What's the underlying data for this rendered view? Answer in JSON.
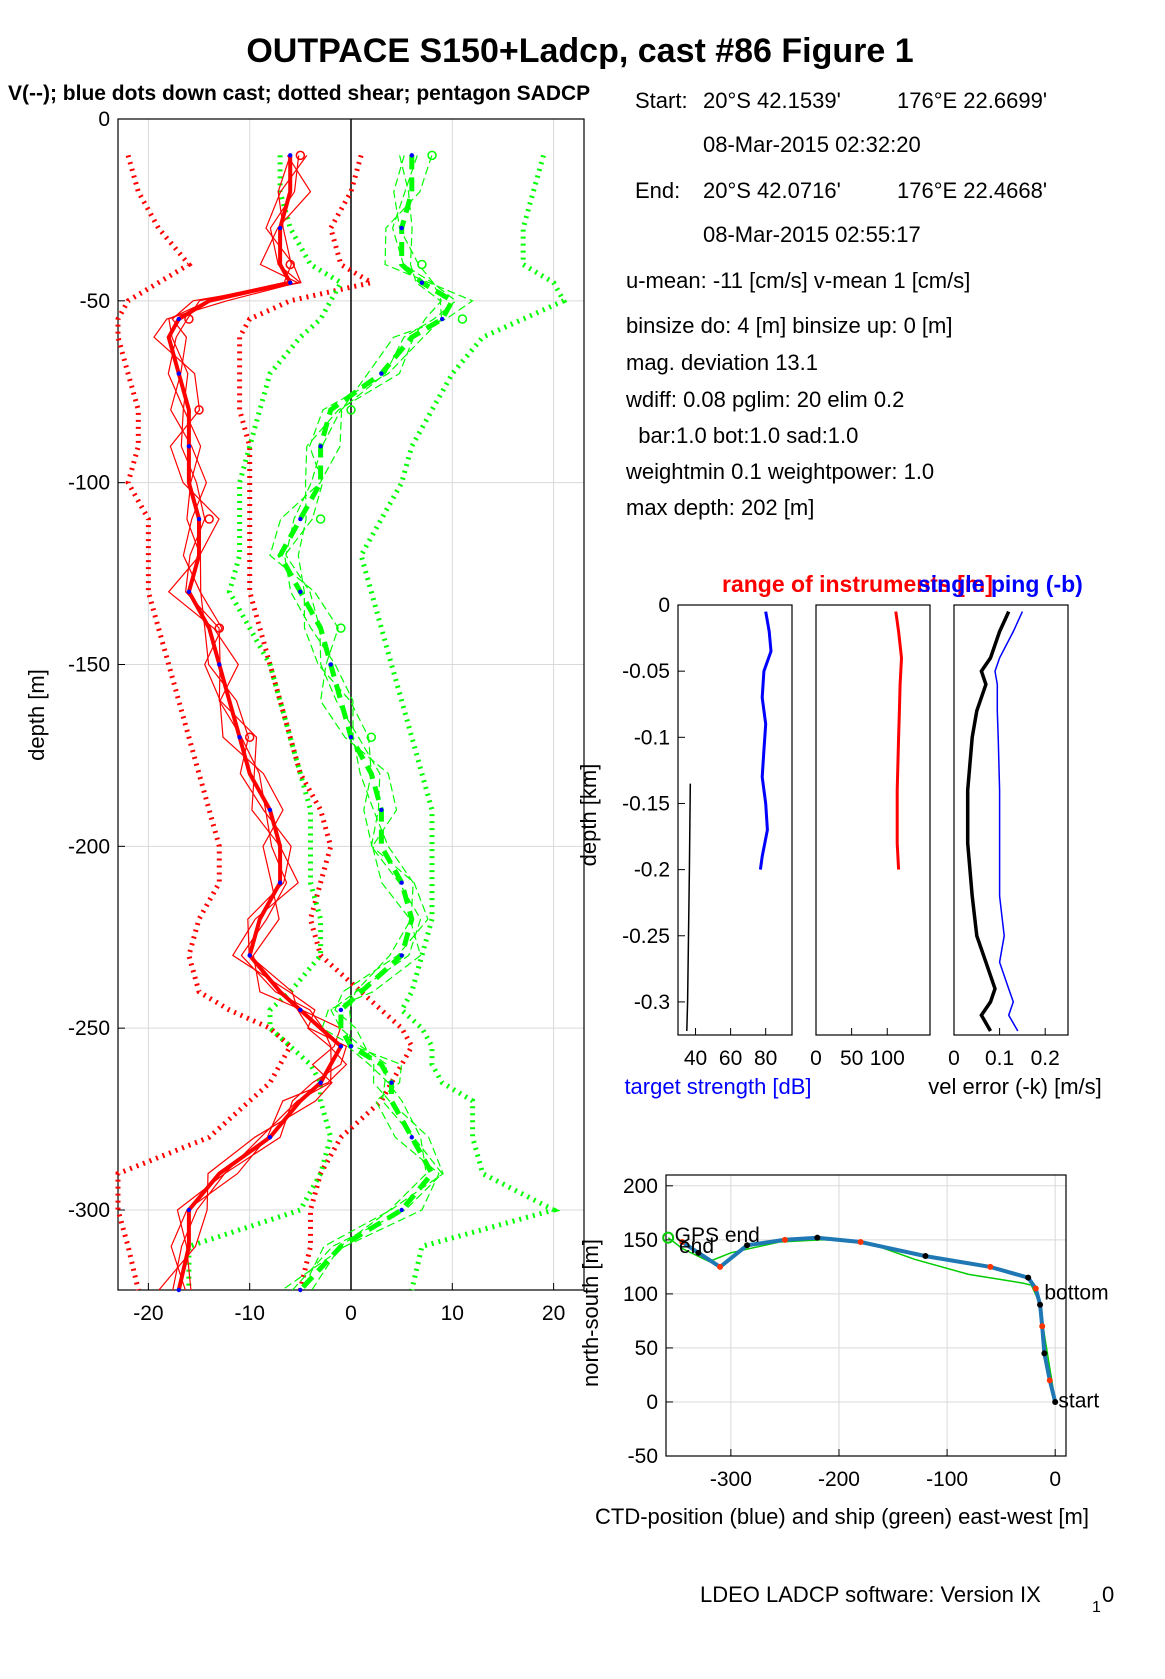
{
  "figure": {
    "title": "OUTPACE S150+Ladcp, cast #86  Figure 1",
    "subtitle": "V(--); blue dots down cast; dotted shear; pentagon SADCP",
    "footer": {
      "text": "LDEO LADCP software: Version IX",
      "sub": "1",
      "suffix": "0"
    }
  },
  "info": {
    "start_label": "Start:",
    "start_lat": "20°S 42.1539'",
    "start_lon": "176°E 22.6699'",
    "start_time": "08-Mar-2015 02:32:20",
    "end_label": "End:",
    "end_lat": "20°S 42.0716'",
    "end_lon": "176°E 22.4668'",
    "end_time": "08-Mar-2015 02:55:17",
    "lines": [
      "u-mean: -11 [cm/s]    v-mean   1 [cm/s]",
      "binsize do: 4 [m]  binsize up:  0 [m]",
      "mag. deviation 13.1",
      "wdiff: 0.08  pglim: 20  elim 0.2",
      "  bar:1.0 bot:1.0 sad:1.0",
      "weightmin 0.1  weightpower: 1.0",
      "max depth: 202 [m]"
    ]
  },
  "chart_data": [
    {
      "id": "velocity_profile",
      "type": "line",
      "ylabel": "depth [m]",
      "xlabel": "",
      "xlim": [
        -23,
        23
      ],
      "ylim": [
        -322,
        0
      ],
      "xticks": [
        -20,
        -10,
        0,
        10,
        20
      ],
      "yticks": [
        0,
        -50,
        -100,
        -150,
        -200,
        -250,
        -300
      ],
      "grid": true,
      "colors": {
        "u": "#ff0000",
        "v": "#00ff00",
        "dots": "#0000ff",
        "zero": "#000000"
      },
      "depth": [
        -10,
        -20,
        -30,
        -40,
        -45,
        -50,
        -55,
        -60,
        -70,
        -80,
        -90,
        -100,
        -110,
        -120,
        -130,
        -140,
        -150,
        -160,
        -170,
        -180,
        -190,
        -200,
        -210,
        -220,
        -230,
        -240,
        -245,
        -250,
        -255,
        -260,
        -265,
        -270,
        -280,
        -290,
        -300,
        -310,
        -322
      ],
      "series": [
        {
          "name": "u",
          "values": [
            -6,
            -6,
            -7,
            -7,
            -6,
            -14,
            -17,
            -18,
            -17,
            -16,
            -16,
            -16,
            -15,
            -15,
            -16,
            -14,
            -13,
            -12,
            -11,
            -10,
            -8,
            -7,
            -7,
            -9,
            -10,
            -7,
            -5,
            -3,
            -1,
            -2,
            -3,
            -5,
            -8,
            -13,
            -16,
            -16,
            -17
          ]
        },
        {
          "name": "v",
          "values": [
            6,
            6,
            5,
            5,
            7,
            10,
            9,
            6,
            3,
            -2,
            -3,
            -3,
            -5,
            -7,
            -5,
            -3,
            -2,
            -1,
            0,
            2,
            3,
            3,
            5,
            6,
            5,
            1,
            -1,
            -1,
            0,
            3,
            4,
            4,
            6,
            8,
            5,
            -1,
            -5
          ]
        },
        {
          "name": "u-shear-left",
          "values": [
            -22,
            -21,
            -19,
            -16,
            -19,
            -22,
            -23,
            -23,
            -22,
            -21,
            -21,
            -22,
            -20,
            -20,
            -20,
            -19,
            -18,
            -17,
            -16,
            -15,
            -14,
            -13,
            -13,
            -15,
            -16,
            -15,
            -12,
            -8,
            -6,
            -7,
            -8,
            -10,
            -14,
            -23,
            -23,
            -22,
            -21
          ]
        },
        {
          "name": "u-shear-right",
          "values": [
            1,
            0,
            -2,
            -1,
            2,
            -6,
            -10,
            -11,
            -11,
            -11,
            -10,
            -10,
            -10,
            -10,
            -10,
            -9,
            -8,
            -7,
            -6,
            -5,
            -3,
            -2,
            -3,
            -4,
            -3,
            1,
            3,
            5,
            6,
            5,
            4,
            3,
            -1,
            -3,
            -4,
            -4,
            -5
          ]
        },
        {
          "name": "v-shear-left",
          "values": [
            -7,
            -7,
            -6,
            -4,
            -1,
            -2,
            -3,
            -5,
            -8,
            -9,
            -10,
            -11,
            -11,
            -11,
            -12,
            -10,
            -8,
            -7,
            -6,
            -5,
            -4,
            -4,
            -4,
            -3,
            -3,
            -6,
            -8,
            -8,
            -6,
            -4,
            -3,
            -3,
            -2,
            -3,
            -5,
            -16,
            -16
          ]
        },
        {
          "name": "v-shear-right",
          "values": [
            19,
            18,
            17,
            17,
            20,
            21,
            17,
            13,
            10,
            8,
            6,
            5,
            3,
            1,
            2,
            3,
            4,
            5,
            6,
            7,
            8,
            8,
            8,
            8,
            7,
            6,
            5,
            7,
            8,
            8,
            9,
            12,
            12,
            13,
            20,
            7,
            6
          ]
        }
      ]
    },
    {
      "id": "target_strength",
      "type": "line",
      "title": "range of instruments [m]",
      "xlabel": "target strength [dB]",
      "ylabel": "depth [km]",
      "xlim": [
        30,
        95
      ],
      "ylim": [
        -0.325,
        0
      ],
      "xticks": [
        40,
        60,
        80
      ],
      "yticks": [
        0,
        -0.05,
        -0.1,
        -0.15,
        -0.2,
        -0.25,
        -0.3
      ],
      "depth": [
        -0.005,
        -0.02,
        -0.035,
        -0.05,
        -0.07,
        -0.09,
        -0.11,
        -0.13,
        -0.15,
        -0.17,
        -0.19,
        -0.2
      ],
      "series": [
        {
          "name": "blue",
          "values": [
            80,
            82,
            83,
            79,
            78,
            80,
            79,
            78,
            80,
            81,
            78,
            77
          ]
        }
      ],
      "black_line": {
        "depth": [
          -0.135,
          -0.2,
          -0.25,
          -0.3,
          -0.322
        ],
        "values": [
          37,
          36.5,
          36,
          35.5,
          35
        ]
      }
    },
    {
      "id": "range",
      "type": "line",
      "xlim": [
        0,
        160
      ],
      "ylim": [
        -0.325,
        0
      ],
      "xticks": [
        0,
        50,
        100
      ],
      "depth": [
        -0.005,
        -0.02,
        -0.04,
        -0.06,
        -0.08,
        -0.1,
        -0.12,
        -0.14,
        -0.16,
        -0.18,
        -0.2
      ],
      "series": [
        {
          "name": "range",
          "values": [
            112,
            116,
            120,
            118,
            117,
            116,
            115,
            114,
            114,
            114,
            116
          ]
        }
      ]
    },
    {
      "id": "vel_error",
      "type": "line",
      "title": "single ping (-b)",
      "xlabel": "vel error (-k) [m/s]",
      "xlim": [
        0,
        0.25
      ],
      "ylim": [
        -0.325,
        0
      ],
      "xticks": [
        0,
        0.1,
        0.2
      ],
      "depth": [
        -0.005,
        -0.02,
        -0.04,
        -0.05,
        -0.06,
        -0.08,
        -0.1,
        -0.14,
        -0.18,
        -0.22,
        -0.25,
        -0.27,
        -0.29,
        -0.3,
        -0.31,
        -0.322
      ],
      "series": [
        {
          "name": "single ping",
          "values": [
            0.15,
            0.13,
            0.1,
            0.09,
            0.095,
            0.095,
            0.097,
            0.1,
            0.1,
            0.1,
            0.11,
            0.1,
            0.12,
            0.13,
            0.12,
            0.14
          ]
        },
        {
          "name": "vel error",
          "values": [
            0.12,
            0.1,
            0.08,
            0.06,
            0.07,
            0.05,
            0.04,
            0.03,
            0.03,
            0.04,
            0.05,
            0.07,
            0.09,
            0.08,
            0.06,
            0.08
          ]
        }
      ]
    },
    {
      "id": "position",
      "type": "line",
      "xlabel": "CTD-position (blue) and ship (green) east-west [m]",
      "ylabel": "north-south [m]",
      "xlim": [
        -360,
        10
      ],
      "ylim": [
        -50,
        210
      ],
      "xticks": [
        -300,
        -200,
        -100,
        0
      ],
      "yticks": [
        200,
        150,
        100,
        50,
        0,
        -50
      ],
      "ctd": {
        "x": [
          0,
          -5,
          -10,
          -12,
          -14,
          -18,
          -25,
          -60,
          -120,
          -180,
          -220,
          -250,
          -285,
          -310,
          -330,
          -345
        ],
        "y": [
          0,
          20,
          45,
          70,
          90,
          105,
          115,
          125,
          135,
          148,
          152,
          150,
          145,
          125,
          138,
          148
        ]
      },
      "ship": {
        "x": [
          0,
          -4,
          -8,
          -12,
          -16,
          -22,
          -30,
          -80,
          -130,
          -175,
          -215,
          -255,
          -300,
          -320,
          -345,
          -358
        ],
        "y": [
          0,
          25,
          50,
          75,
          95,
          108,
          110,
          118,
          132,
          148,
          150,
          148,
          138,
          130,
          142,
          152
        ]
      },
      "labels": {
        "start": "start",
        "bottom": "bottom",
        "gps_end": "GPS end",
        "end": "end"
      }
    }
  ]
}
